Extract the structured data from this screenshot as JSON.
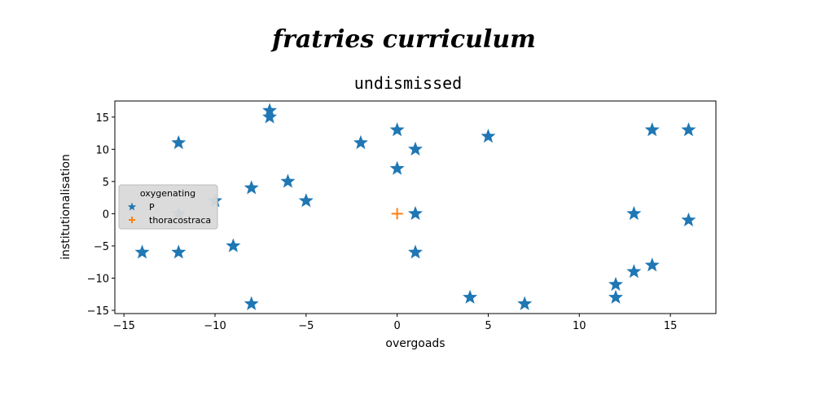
{
  "chart_data": {
    "type": "scatter",
    "suptitle": "fratries curriculum",
    "title": "undismissed",
    "xlabel": "overgoads",
    "ylabel": "institutionalisation",
    "xlim": [
      -15.5,
      17.5
    ],
    "ylim": [
      -15.5,
      17.5
    ],
    "xticks": [
      -15,
      -10,
      -5,
      0,
      5,
      10,
      15
    ],
    "yticks": [
      -15,
      -10,
      -5,
      0,
      5,
      10,
      15
    ],
    "grid": false,
    "legend": {
      "title": "oxygenating",
      "position": "center-left"
    },
    "series": [
      {
        "name": "P",
        "marker": "star",
        "color": "#1f77b4",
        "points": [
          [
            -14,
            -6
          ],
          [
            -12,
            11
          ],
          [
            -12,
            0
          ],
          [
            -12,
            -6
          ],
          [
            -10,
            2
          ],
          [
            -9,
            -5
          ],
          [
            -8,
            4
          ],
          [
            -8,
            -14
          ],
          [
            -7,
            16
          ],
          [
            -7,
            15
          ],
          [
            -6,
            5
          ],
          [
            -5,
            2
          ],
          [
            -2,
            11
          ],
          [
            0,
            13
          ],
          [
            0,
            7
          ],
          [
            1,
            10
          ],
          [
            1,
            0
          ],
          [
            1,
            -6
          ],
          [
            4,
            -13
          ],
          [
            5,
            12
          ],
          [
            7,
            -14
          ],
          [
            12,
            -11
          ],
          [
            12,
            -13
          ],
          [
            13,
            0
          ],
          [
            13,
            -9
          ],
          [
            14,
            13
          ],
          [
            14,
            -8
          ],
          [
            16,
            13
          ],
          [
            16,
            -1
          ]
        ]
      },
      {
        "name": "thoracostraca",
        "marker": "plus",
        "color": "#ff7f0e",
        "points": [
          [
            0,
            0
          ]
        ]
      }
    ]
  }
}
